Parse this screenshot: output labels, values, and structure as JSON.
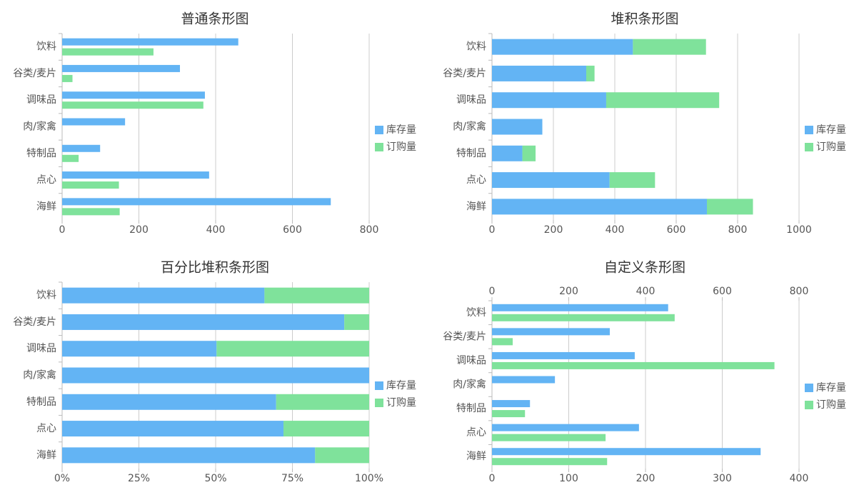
{
  "chart_data": [
    {
      "type": "bar",
      "title": "普通条形图",
      "stacked": false,
      "categories": [
        "饮料",
        "谷类/麦片",
        "调味品",
        "肉/家禽",
        "特制品",
        "点心",
        "海鲜"
      ],
      "series": [
        {
          "name": "库存量",
          "color": "#63b4f4",
          "values": [
            459,
            307,
            372,
            164,
            99,
            383,
            700
          ]
        },
        {
          "name": "订购量",
          "color": "#7fe29b",
          "values": [
            238,
            27,
            368,
            0,
            43,
            148,
            150
          ]
        }
      ],
      "xlim": [
        0,
        800
      ],
      "xticks": [
        0,
        200,
        400,
        600,
        800
      ],
      "grid": true,
      "legend": "right"
    },
    {
      "type": "bar",
      "title": "堆积条形图",
      "stacked": true,
      "categories": [
        "饮料",
        "谷类/麦片",
        "调味品",
        "肉/家禽",
        "特制品",
        "点心",
        "海鲜"
      ],
      "series": [
        {
          "name": "库存量",
          "color": "#63b4f4",
          "values": [
            459,
            307,
            372,
            164,
            99,
            383,
            700
          ]
        },
        {
          "name": "订购量",
          "color": "#7fe29b",
          "values": [
            238,
            27,
            368,
            0,
            43,
            148,
            150
          ]
        }
      ],
      "xlim": [
        0,
        1000
      ],
      "xticks": [
        0,
        200,
        400,
        600,
        800,
        1000
      ],
      "grid": true,
      "legend": "right"
    },
    {
      "type": "bar",
      "title": "百分比堆积条形图",
      "stacked": true,
      "categories": [
        "饮料",
        "谷类/麦片",
        "调味品",
        "肉/家禽",
        "特制品",
        "点心",
        "海鲜"
      ],
      "series": [
        {
          "name": "库存量",
          "color": "#63b4f4",
          "values": [
            65.9,
            91.9,
            50.3,
            100,
            69.7,
            72.1,
            82.4
          ]
        },
        {
          "name": "订购量",
          "color": "#7fe29b",
          "values": [
            34.1,
            8.1,
            49.7,
            0,
            30.3,
            27.9,
            17.6
          ]
        }
      ],
      "xlim": [
        0,
        100
      ],
      "xticks": [
        {
          "value": 0,
          "label": "0%"
        },
        {
          "value": 25,
          "label": "25%"
        },
        {
          "value": 50,
          "label": "50%"
        },
        {
          "value": 75,
          "label": "75%"
        },
        {
          "value": 100,
          "label": "100%"
        }
      ],
      "grid": true,
      "legend": "right"
    },
    {
      "type": "bar",
      "title": "自定义条形图",
      "stacked": false,
      "categories": [
        "饮料",
        "谷类/麦片",
        "调味品",
        "肉/家禽",
        "特制品",
        "点心",
        "海鲜"
      ],
      "series": [
        {
          "name": "库存量",
          "color": "#63b4f4",
          "axis": "x2",
          "values": [
            459,
            307,
            372,
            164,
            99,
            383,
            700
          ]
        },
        {
          "name": "订购量",
          "color": "#7fe29b",
          "values": [
            238,
            27,
            368,
            0,
            43,
            148,
            150
          ]
        }
      ],
      "xlim": [
        0,
        400
      ],
      "xticks": [
        0,
        100,
        200,
        300,
        400
      ],
      "x2lim": [
        0,
        800
      ],
      "x2ticks": [
        0,
        200,
        400,
        600,
        800
      ],
      "grid": true,
      "legend": "right"
    }
  ]
}
